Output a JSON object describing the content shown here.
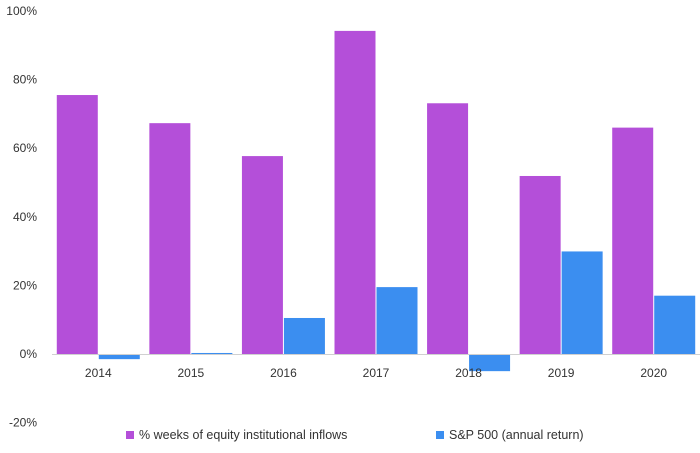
{
  "chart_data": {
    "type": "bar",
    "title": "",
    "xlabel": "",
    "ylabel": "",
    "categories": [
      "2014",
      "2015",
      "2016",
      "2017",
      "2018",
      "2019",
      "2020"
    ],
    "series": [
      {
        "name": "% weeks of equity institutional inflows",
        "color": "#b44fd9",
        "values": [
          75.5,
          67.3,
          57.7,
          94.2,
          73.1,
          51.9,
          66.0
        ]
      },
      {
        "name": "S&P 500 (annual return)",
        "color": "#3b8ef0",
        "values": [
          -1.5,
          0.3,
          10.5,
          19.5,
          -5.0,
          29.9,
          17.0
        ]
      }
    ],
    "ylim": [
      -20,
      100
    ],
    "yticks": [
      "100%",
      "80%",
      "60%",
      "40%",
      "20%",
      "0%",
      "-20%"
    ],
    "ytick_values": [
      100,
      80,
      60,
      40,
      20,
      0,
      -20
    ],
    "grid": false,
    "legend_position": "bottom"
  }
}
